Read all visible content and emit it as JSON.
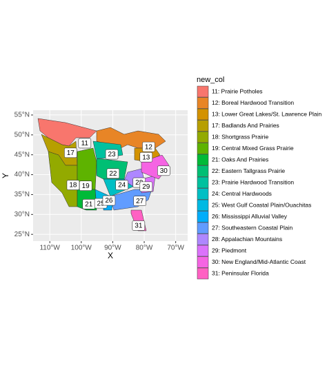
{
  "chart_data": {
    "type": "map",
    "x_label": "X",
    "y_label": "Y",
    "xlim": [
      -115.3,
      -66.2
    ],
    "ylim": [
      23.3,
      56.2
    ],
    "xticks": [
      {
        "value": -110,
        "label": "110°W"
      },
      {
        "value": -100,
        "label": "100°W"
      },
      {
        "value": -90,
        "label": "90°W"
      },
      {
        "value": -80,
        "label": "80°W"
      },
      {
        "value": -70,
        "label": "70°W"
      }
    ],
    "yticks": [
      {
        "value": 25,
        "label": "25°N"
      },
      {
        "value": 30,
        "label": "30°N"
      },
      {
        "value": 35,
        "label": "35°N"
      },
      {
        "value": 40,
        "label": "40°N"
      },
      {
        "value": 45,
        "label": "45°N"
      },
      {
        "value": 50,
        "label": "50°N"
      },
      {
        "value": 55,
        "label": "55°N"
      }
    ],
    "grid": true,
    "legend": {
      "title": "new_col",
      "entries": [
        {
          "name": "11: Prairie Potholes",
          "color": "#F8766D"
        },
        {
          "name": "12: Boreal Hardwood Transition",
          "color": "#E88526"
        },
        {
          "name": "13: Lower Great Lakes/St. Lawrence Plain",
          "color": "#D39200"
        },
        {
          "name": "17: Badlands And Prairies",
          "color": "#B79F00"
        },
        {
          "name": "18: Shortgrass Prairie",
          "color": "#93AA00"
        },
        {
          "name": "19: Central Mixed Grass Prairie",
          "color": "#5EB300"
        },
        {
          "name": "21: Oaks And Prairies",
          "color": "#00BA38"
        },
        {
          "name": "22: Eastern Tallgrass Prairie",
          "color": "#00BF74"
        },
        {
          "name": "23: Prairie Hardwood Transition",
          "color": "#00C19F"
        },
        {
          "name": "24: Central Hardwoods",
          "color": "#00BFC4"
        },
        {
          "name": "25: West Gulf Coastal Plain/Ouachitas",
          "color": "#00B9E3"
        },
        {
          "name": "26: Mississippi Alluvial Valley",
          "color": "#00ADFA"
        },
        {
          "name": "27: Southeastern Coastal Plain",
          "color": "#619CFF"
        },
        {
          "name": "28: Appalachian Mountains",
          "color": "#AE87FF"
        },
        {
          "name": "29: Piedmont",
          "color": "#DB72FB"
        },
        {
          "name": "30: New England/Mid-Atlantic Coast",
          "color": "#F564E3"
        },
        {
          "name": "31: Peninsular Florida",
          "color": "#FF61C3"
        }
      ]
    },
    "labels": [
      {
        "text": "11",
        "x": -98.9,
        "y": 47.9
      },
      {
        "text": "12",
        "x": -78.6,
        "y": 47.0
      },
      {
        "text": "13",
        "x": -79.4,
        "y": 44.4
      },
      {
        "text": "17",
        "x": -103.4,
        "y": 45.5
      },
      {
        "text": "18",
        "x": -102.6,
        "y": 37.4
      },
      {
        "text": "19",
        "x": -98.6,
        "y": 37.2
      },
      {
        "text": "21",
        "x": -97.6,
        "y": 32.6
      },
      {
        "text": "22",
        "x": -89.9,
        "y": 40.3
      },
      {
        "text": "23",
        "x": -90.3,
        "y": 45.1
      },
      {
        "text": "24",
        "x": -87.1,
        "y": 37.4
      },
      {
        "text": "25",
        "x": -93.8,
        "y": 32.8
      },
      {
        "text": "26",
        "x": -91.2,
        "y": 33.5
      },
      {
        "text": "27",
        "x": -81.4,
        "y": 33.4
      },
      {
        "text": "28",
        "x": -81.6,
        "y": 38.0
      },
      {
        "text": "29",
        "x": -79.4,
        "y": 37.0
      },
      {
        "text": "30",
        "x": -73.8,
        "y": 41.0
      },
      {
        "text": "31",
        "x": -81.8,
        "y": 27.2
      }
    ]
  }
}
